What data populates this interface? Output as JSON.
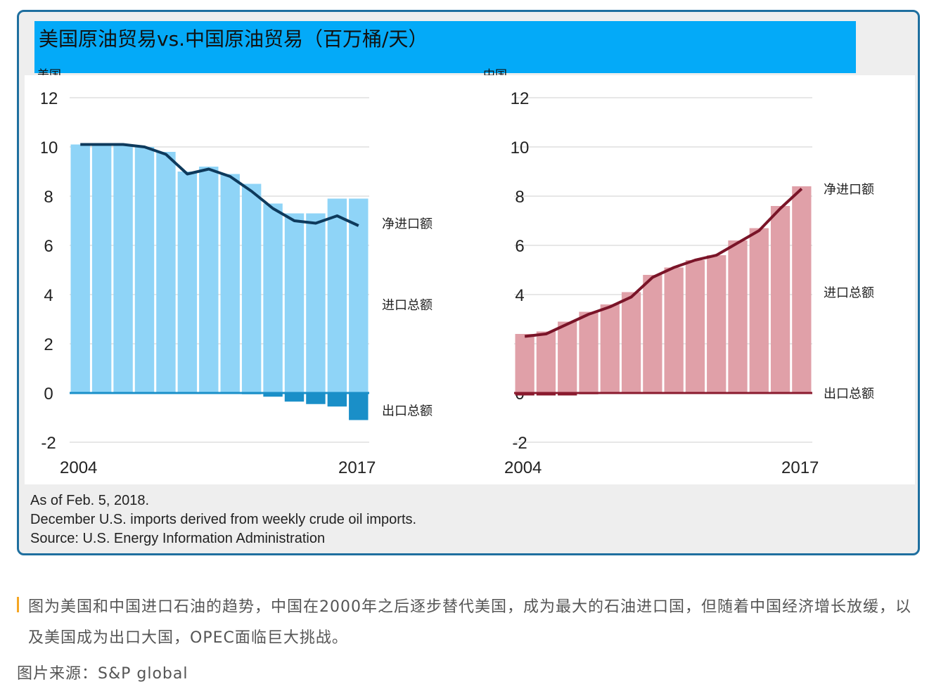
{
  "main_title": "美国原油贸易vs.中国原油贸易（百万桶/天）",
  "notes": {
    "as_of": "As of Feb. 5, 2018.",
    "december": "December U.S. imports derived from weekly crude oil imports.",
    "source": "Source: U.S. Energy Information Administration"
  },
  "caption": "图为美国和中国进口石油的趋势，中国在2000年之后逐步替代美国，成为最大的石油进口国，但随着中国经济增长放缓，以及美国成为出口大国，OPEC面临巨大挑战。",
  "image_source": "图片来源：S&P global",
  "colors": {
    "us_imports": "#8fd4f7",
    "us_exports": "#1a8fc8",
    "us_net": "#0e3a5c",
    "cn_imports": "#e0a0a8",
    "cn_exports": "#8a1a2e",
    "cn_net": "#7a1428",
    "title_bar": "#04aaf8"
  },
  "chart_data": [
    {
      "type": "bar",
      "panel_label": "美国",
      "years": [
        2004,
        2005,
        2006,
        2007,
        2008,
        2009,
        2010,
        2011,
        2012,
        2013,
        2014,
        2015,
        2016,
        2017
      ],
      "x_tick_labels": [
        "2004",
        "2017"
      ],
      "y_ticks": [
        "12",
        "10",
        "8",
        "6",
        "4",
        "2",
        "0",
        "-2"
      ],
      "ylim": [
        -2,
        12
      ],
      "series": [
        {
          "name": "进口总额",
          "kind": "bar",
          "values": [
            10.1,
            10.1,
            10.1,
            10.0,
            9.8,
            9.0,
            9.2,
            8.9,
            8.5,
            7.7,
            7.3,
            7.3,
            7.9,
            7.9
          ]
        },
        {
          "name": "出口总额",
          "kind": "bar",
          "values": [
            0,
            0,
            0,
            0,
            0,
            0,
            0,
            0,
            -0.05,
            -0.15,
            -0.35,
            -0.45,
            -0.55,
            -1.1
          ]
        },
        {
          "name": "净进口额",
          "kind": "line",
          "values": [
            10.1,
            10.1,
            10.1,
            10.0,
            9.7,
            8.9,
            9.1,
            8.8,
            8.2,
            7.5,
            7.0,
            6.9,
            7.2,
            6.8
          ]
        }
      ],
      "series_labels": {
        "net": "净进口额",
        "imports": "进口总额",
        "exports": "出口总额"
      }
    },
    {
      "type": "bar",
      "panel_label": "中国",
      "years": [
        2004,
        2005,
        2006,
        2007,
        2008,
        2009,
        2010,
        2011,
        2012,
        2013,
        2014,
        2015,
        2016,
        2017
      ],
      "x_tick_labels": [
        "2004",
        "2017"
      ],
      "y_ticks": [
        "12",
        "10",
        "8",
        "6",
        "4",
        "2",
        "0",
        "-2"
      ],
      "ylim": [
        -2,
        12
      ],
      "series": [
        {
          "name": "进口总额",
          "kind": "bar",
          "values": [
            2.4,
            2.5,
            2.9,
            3.3,
            3.6,
            4.1,
            4.8,
            5.1,
            5.4,
            5.6,
            6.2,
            6.7,
            7.6,
            8.4
          ]
        },
        {
          "name": "出口总额",
          "kind": "bar",
          "values": [
            -0.1,
            -0.1,
            -0.1,
            -0.05,
            0,
            0,
            0,
            0,
            0,
            0,
            0,
            0,
            0,
            0
          ]
        },
        {
          "name": "净进口额",
          "kind": "line",
          "values": [
            2.3,
            2.4,
            2.8,
            3.2,
            3.5,
            3.9,
            4.7,
            5.1,
            5.4,
            5.6,
            6.1,
            6.6,
            7.5,
            8.3
          ]
        }
      ],
      "series_labels": {
        "net": "净进口额",
        "imports": "进口总额",
        "exports": "出口总额"
      }
    }
  ]
}
